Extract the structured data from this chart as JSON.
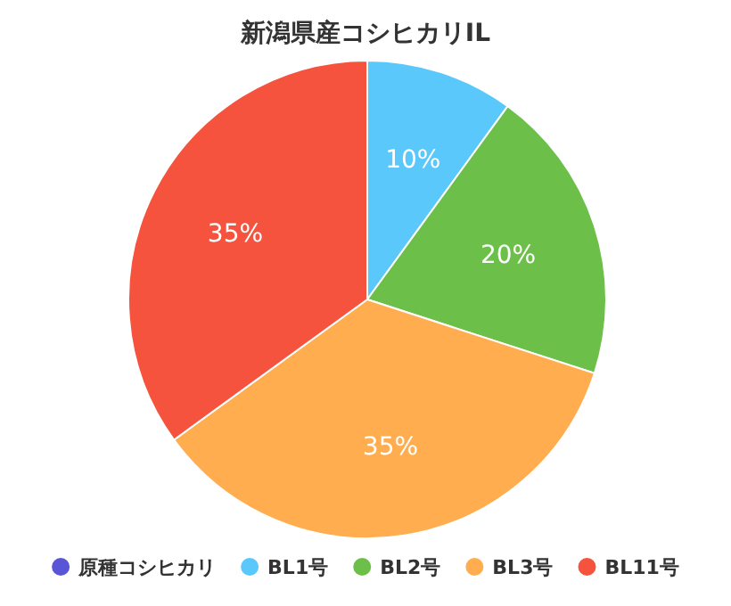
{
  "chart_data": {
    "type": "pie",
    "title": "新潟県産コシヒカリIL",
    "categories": [
      "原種コシヒカリ",
      "BL1号",
      "BL2号",
      "BL3号",
      "BL11号"
    ],
    "values": [
      0,
      10,
      20,
      35,
      35
    ],
    "colors": [
      "#5856d6",
      "#5ac8fa",
      "#6cc04a",
      "#ffad4f",
      "#f5533d"
    ],
    "value_labels": [
      null,
      "10%",
      "20%",
      "35%",
      "35%"
    ],
    "legend": "bottom"
  }
}
